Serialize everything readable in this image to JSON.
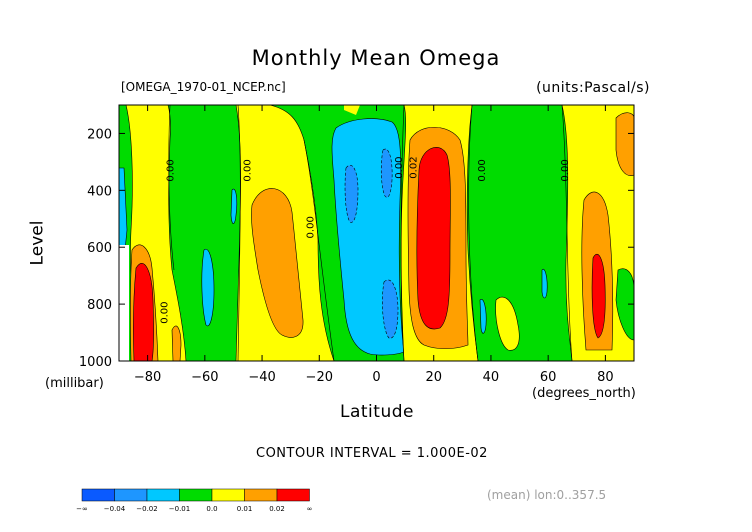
{
  "chart_data": {
    "type": "contour",
    "title": "Monthly Mean Omega",
    "file_label": "[OMEGA_1970-01_NCEP.nc]",
    "units_label": "(units:Pascal/s)",
    "xlabel": "Latitude",
    "x_units": "(degrees_north)",
    "ylabel": "Level",
    "y_units": "(millibar)",
    "xlim": [
      -90,
      90
    ],
    "ylim": [
      1000,
      100
    ],
    "y_reversed": true,
    "x_ticks": [
      -80,
      -60,
      -40,
      -20,
      0,
      20,
      40,
      60,
      80
    ],
    "y_ticks": [
      1000,
      800,
      600,
      400,
      200
    ],
    "contour_interval_text": "CONTOUR INTERVAL = 1.000E-02",
    "mean_text": "(mean) lon:0..357.5",
    "contour_labels": [
      {
        "text": "0.00",
        "x": -71,
        "y": 330
      },
      {
        "text": "0.00",
        "x": -44,
        "y": 330
      },
      {
        "text": "0.00",
        "x": -22,
        "y": 530
      },
      {
        "text": "0.00",
        "x": 9,
        "y": 320
      },
      {
        "text": "0.02",
        "x": 14,
        "y": 320
      },
      {
        "text": "0.00",
        "x": 38,
        "y": 330
      },
      {
        "text": "0.00",
        "x": 67,
        "y": 330
      },
      {
        "text": "0.00",
        "x": -73,
        "y": 830
      }
    ],
    "colorbar": {
      "levels": [
        "-∞",
        "-0.04",
        "-0.02",
        "-0.01",
        "0.0",
        "0.01",
        "0.02",
        "∞"
      ],
      "colors": [
        "#0a5aff",
        "#1e96ff",
        "#00c8ff",
        "#00dc00",
        "#ffff00",
        "#ffa000",
        "#ff0000"
      ]
    },
    "regions": [
      {
        "name": "lat -90 to -85 (cyan/green)",
        "band": "-0.02..0.0"
      },
      {
        "name": "lat -85 to -74 (yellow/orange/red)",
        "band": "0.0..0.03"
      },
      {
        "name": "lat -74 to -48 (green)",
        "band": "-0.01..0.0"
      },
      {
        "name": "lat -48 to -22 (yellow, orange core)",
        "band": "0.0..0.02"
      },
      {
        "name": "lat -22 to -15 (green)",
        "band": "-0.01..0.0"
      },
      {
        "name": "lat -15 to 8 (cyan, blue cores)",
        "band": "-0.04..-0.01"
      },
      {
        "name": "lat 10 to 32 (yellow/orange/red)",
        "band": "0.0..0.03"
      },
      {
        "name": "lat 32 to 68 (green)",
        "band": "-0.01..0.0"
      },
      {
        "name": "lat 68 to 90 (yellow/orange/red)",
        "band": "0.0..0.03"
      }
    ]
  }
}
